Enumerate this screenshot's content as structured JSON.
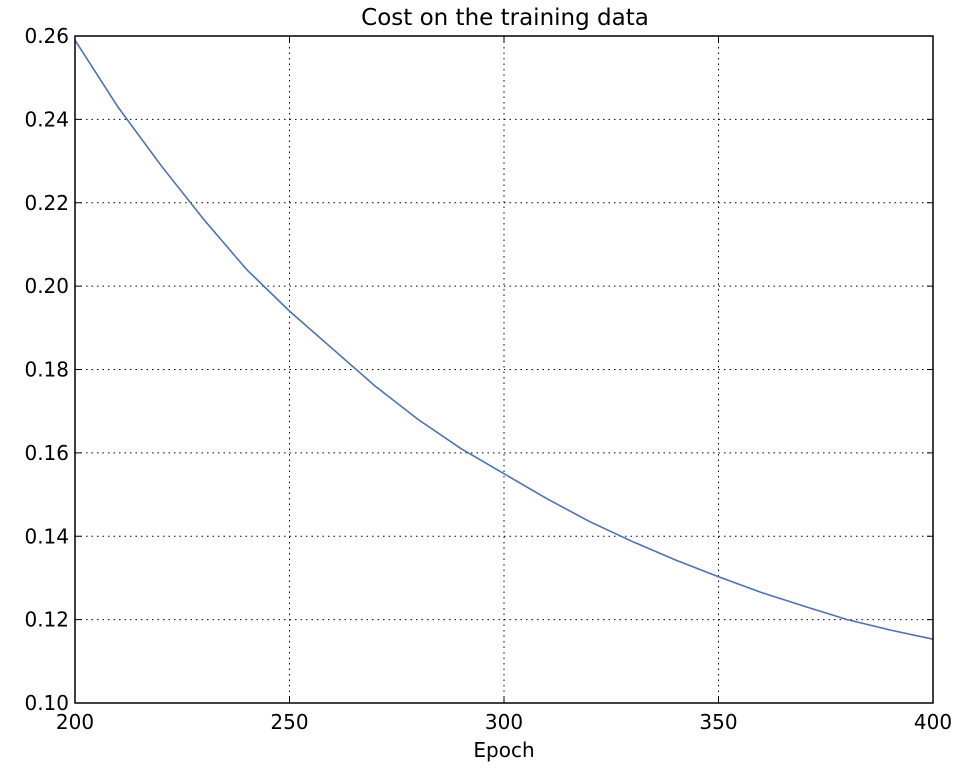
{
  "chart_data": {
    "type": "line",
    "title": "Cost on the training data",
    "xlabel": "Epoch",
    "ylabel": "",
    "xlim": [
      200,
      400
    ],
    "ylim": [
      0.1,
      0.26
    ],
    "xticks": [
      "200",
      "250",
      "300",
      "350",
      "400"
    ],
    "yticks": [
      "0.10",
      "0.12",
      "0.14",
      "0.16",
      "0.18",
      "0.20",
      "0.22",
      "0.24",
      "0.26"
    ],
    "grid": true,
    "line_color": "#4c72b0",
    "series": [
      {
        "x": [
          200,
          210,
          220,
          230,
          240,
          250,
          260,
          270,
          280,
          290,
          300,
          310,
          320,
          330,
          340,
          350,
          360,
          370,
          380,
          390,
          400
        ],
        "y": [
          0.259,
          0.243,
          0.229,
          0.216,
          0.204,
          0.194,
          0.185,
          0.176,
          0.168,
          0.161,
          0.155,
          0.149,
          0.1435,
          0.1387,
          0.1343,
          0.1303,
          0.1265,
          0.1232,
          0.12,
          0.1175,
          0.1153
        ]
      }
    ]
  }
}
